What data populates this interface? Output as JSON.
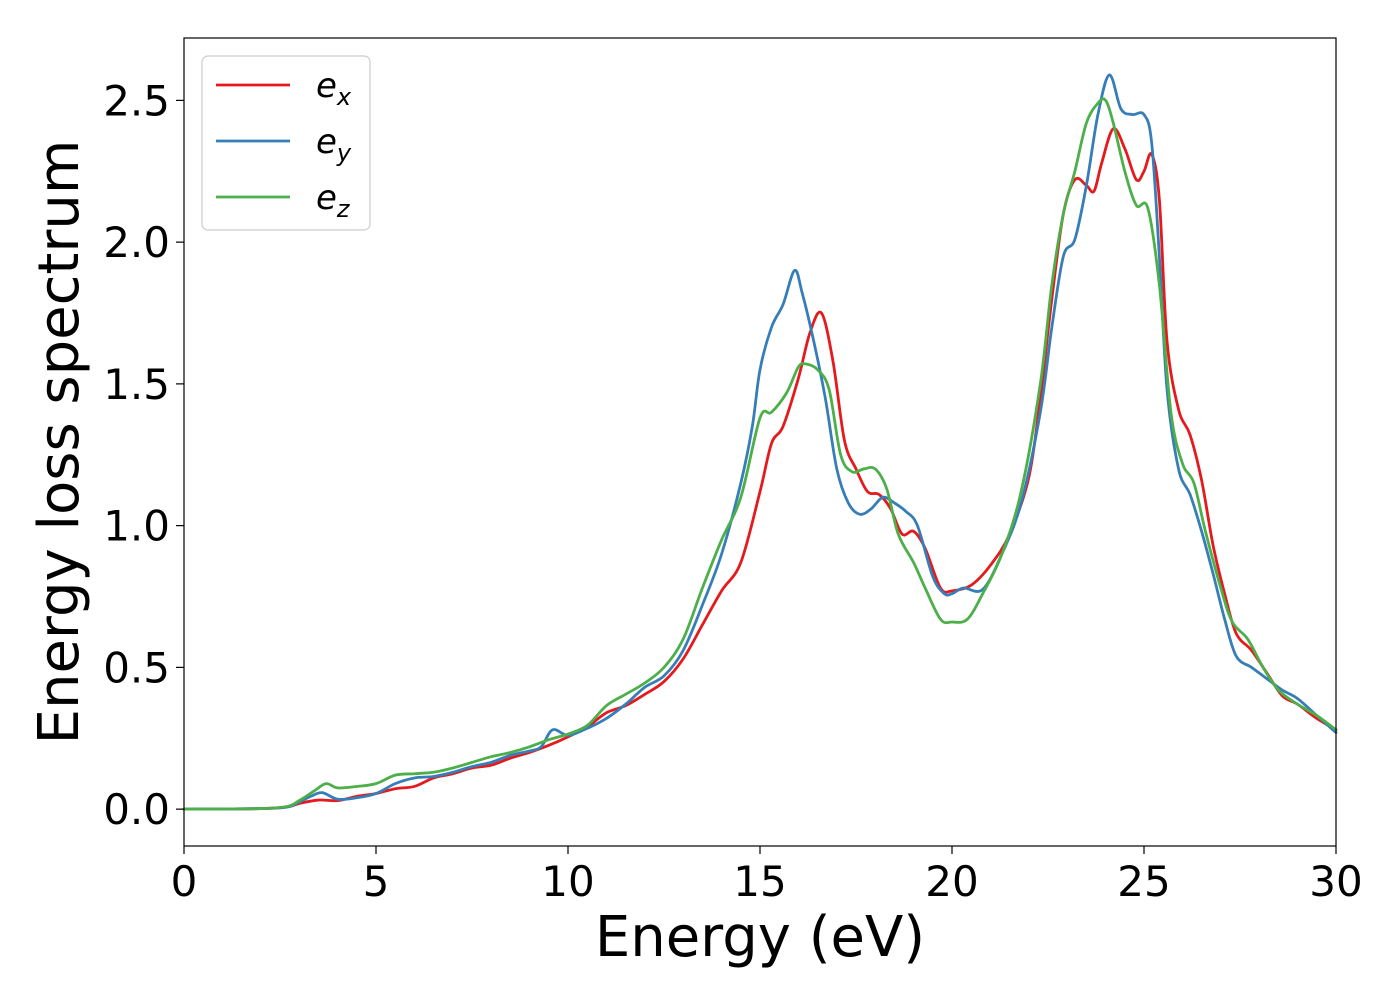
{
  "chart_data": {
    "type": "line",
    "title": "",
    "xlabel": "Energy (eV)",
    "ylabel": "Energy loss spectrum",
    "xlim": [
      0,
      30
    ],
    "ylim": [
      -0.13,
      2.72
    ],
    "xticks": [
      0,
      5,
      10,
      15,
      20,
      25,
      30
    ],
    "xtick_labels": [
      "0",
      "5",
      "10",
      "15",
      "20",
      "25",
      "30"
    ],
    "yticks": [
      0.0,
      0.5,
      1.0,
      1.5,
      2.0,
      2.5
    ],
    "ytick_labels": [
      "0.0",
      "0.5",
      "1.0",
      "1.5",
      "2.0",
      "2.5"
    ],
    "grid": false,
    "legend_position": "top-left",
    "series": [
      {
        "name": "e_x",
        "label_base": "e",
        "label_sub": "x",
        "color": "#e41a1c",
        "points": [
          [
            0,
            0
          ],
          [
            2,
            0.002
          ],
          [
            2.7,
            0.008
          ],
          [
            3,
            0.02
          ],
          [
            3.5,
            0.032
          ],
          [
            4,
            0.03
          ],
          [
            4.5,
            0.045
          ],
          [
            5,
            0.055
          ],
          [
            5.5,
            0.072
          ],
          [
            6,
            0.08
          ],
          [
            6.5,
            0.11
          ],
          [
            7,
            0.125
          ],
          [
            7.5,
            0.145
          ],
          [
            8,
            0.155
          ],
          [
            8.5,
            0.18
          ],
          [
            9,
            0.2
          ],
          [
            9.5,
            0.225
          ],
          [
            10,
            0.255
          ],
          [
            10.5,
            0.29
          ],
          [
            11,
            0.34
          ],
          [
            11.5,
            0.365
          ],
          [
            12,
            0.405
          ],
          [
            12.5,
            0.45
          ],
          [
            13,
            0.53
          ],
          [
            13.5,
            0.65
          ],
          [
            14,
            0.77
          ],
          [
            14.5,
            0.87
          ],
          [
            15,
            1.12
          ],
          [
            15.3,
            1.29
          ],
          [
            15.6,
            1.35
          ],
          [
            16,
            1.52
          ],
          [
            16.3,
            1.68
          ],
          [
            16.6,
            1.75
          ],
          [
            16.9,
            1.58
          ],
          [
            17.2,
            1.3
          ],
          [
            17.5,
            1.2
          ],
          [
            17.8,
            1.12
          ],
          [
            18.1,
            1.11
          ],
          [
            18.4,
            1.06
          ],
          [
            18.7,
            0.97
          ],
          [
            19,
            0.98
          ],
          [
            19.3,
            0.92
          ],
          [
            19.7,
            0.78
          ],
          [
            20,
            0.77
          ],
          [
            20.5,
            0.79
          ],
          [
            21,
            0.86
          ],
          [
            21.5,
            0.97
          ],
          [
            22,
            1.17
          ],
          [
            22.3,
            1.45
          ],
          [
            22.6,
            1.8
          ],
          [
            22.9,
            2.1
          ],
          [
            23.2,
            2.22
          ],
          [
            23.5,
            2.2
          ],
          [
            23.7,
            2.18
          ],
          [
            23.9,
            2.28
          ],
          [
            24.2,
            2.4
          ],
          [
            24.5,
            2.33
          ],
          [
            24.8,
            2.22
          ],
          [
            25,
            2.25
          ],
          [
            25.2,
            2.31
          ],
          [
            25.4,
            2.15
          ],
          [
            25.6,
            1.65
          ],
          [
            25.9,
            1.41
          ],
          [
            26.2,
            1.32
          ],
          [
            26.5,
            1.16
          ],
          [
            26.8,
            0.93
          ],
          [
            27.1,
            0.76
          ],
          [
            27.4,
            0.62
          ],
          [
            27.8,
            0.56
          ],
          [
            28.2,
            0.48
          ],
          [
            28.6,
            0.4
          ],
          [
            29,
            0.37
          ],
          [
            29.5,
            0.32
          ],
          [
            30,
            0.28
          ]
        ]
      },
      {
        "name": "e_y",
        "label_base": "e",
        "label_sub": "y",
        "color": "#377eb8",
        "points": [
          [
            0,
            0
          ],
          [
            2,
            0.002
          ],
          [
            2.7,
            0.008
          ],
          [
            3,
            0.025
          ],
          [
            3.3,
            0.045
          ],
          [
            3.6,
            0.058
          ],
          [
            4,
            0.035
          ],
          [
            4.5,
            0.04
          ],
          [
            5,
            0.055
          ],
          [
            5.5,
            0.09
          ],
          [
            6,
            0.11
          ],
          [
            6.5,
            0.115
          ],
          [
            7,
            0.13
          ],
          [
            7.5,
            0.15
          ],
          [
            8,
            0.165
          ],
          [
            8.5,
            0.19
          ],
          [
            9,
            0.205
          ],
          [
            9.3,
            0.22
          ],
          [
            9.6,
            0.28
          ],
          [
            10,
            0.26
          ],
          [
            10.5,
            0.285
          ],
          [
            11,
            0.32
          ],
          [
            11.5,
            0.37
          ],
          [
            12,
            0.43
          ],
          [
            12.5,
            0.47
          ],
          [
            13,
            0.56
          ],
          [
            13.5,
            0.72
          ],
          [
            14,
            0.9
          ],
          [
            14.5,
            1.15
          ],
          [
            14.8,
            1.35
          ],
          [
            15,
            1.55
          ],
          [
            15.3,
            1.7
          ],
          [
            15.6,
            1.78
          ],
          [
            15.9,
            1.9
          ],
          [
            16.1,
            1.82
          ],
          [
            16.4,
            1.65
          ],
          [
            16.7,
            1.45
          ],
          [
            17,
            1.2
          ],
          [
            17.3,
            1.08
          ],
          [
            17.6,
            1.04
          ],
          [
            17.9,
            1.06
          ],
          [
            18.2,
            1.1
          ],
          [
            18.5,
            1.08
          ],
          [
            18.8,
            1.05
          ],
          [
            19.1,
            1.0
          ],
          [
            19.5,
            0.82
          ],
          [
            19.8,
            0.76
          ],
          [
            20,
            0.76
          ],
          [
            20.3,
            0.78
          ],
          [
            20.8,
            0.775
          ],
          [
            21.3,
            0.9
          ],
          [
            21.8,
            1.08
          ],
          [
            22.3,
            1.4
          ],
          [
            22.6,
            1.7
          ],
          [
            22.9,
            1.95
          ],
          [
            23.2,
            2.01
          ],
          [
            23.5,
            2.2
          ],
          [
            23.8,
            2.45
          ],
          [
            24.1,
            2.59
          ],
          [
            24.4,
            2.47
          ],
          [
            24.7,
            2.45
          ],
          [
            25,
            2.45
          ],
          [
            25.2,
            2.35
          ],
          [
            25.4,
            1.95
          ],
          [
            25.6,
            1.48
          ],
          [
            25.9,
            1.2
          ],
          [
            26.2,
            1.11
          ],
          [
            26.5,
            0.98
          ],
          [
            26.8,
            0.83
          ],
          [
            27.1,
            0.67
          ],
          [
            27.4,
            0.54
          ],
          [
            27.8,
            0.5
          ],
          [
            28.2,
            0.46
          ],
          [
            28.6,
            0.42
          ],
          [
            29,
            0.39
          ],
          [
            29.5,
            0.33
          ],
          [
            30,
            0.27
          ]
        ]
      },
      {
        "name": "e_z",
        "label_base": "e",
        "label_sub": "z",
        "color": "#4daf4a",
        "points": [
          [
            0,
            0
          ],
          [
            2,
            0.002
          ],
          [
            2.7,
            0.01
          ],
          [
            3,
            0.03
          ],
          [
            3.4,
            0.065
          ],
          [
            3.7,
            0.09
          ],
          [
            4,
            0.075
          ],
          [
            4.5,
            0.08
          ],
          [
            5,
            0.09
          ],
          [
            5.5,
            0.12
          ],
          [
            6,
            0.125
          ],
          [
            6.5,
            0.13
          ],
          [
            7,
            0.145
          ],
          [
            7.5,
            0.165
          ],
          [
            8,
            0.185
          ],
          [
            8.5,
            0.2
          ],
          [
            9,
            0.22
          ],
          [
            9.5,
            0.245
          ],
          [
            10,
            0.265
          ],
          [
            10.5,
            0.295
          ],
          [
            11,
            0.365
          ],
          [
            11.5,
            0.405
          ],
          [
            12,
            0.445
          ],
          [
            12.5,
            0.5
          ],
          [
            13,
            0.6
          ],
          [
            13.5,
            0.78
          ],
          [
            14,
            0.95
          ],
          [
            14.5,
            1.1
          ],
          [
            15,
            1.38
          ],
          [
            15.3,
            1.4
          ],
          [
            15.7,
            1.47
          ],
          [
            16,
            1.56
          ],
          [
            16.2,
            1.57
          ],
          [
            16.5,
            1.55
          ],
          [
            16.8,
            1.48
          ],
          [
            17.1,
            1.25
          ],
          [
            17.4,
            1.19
          ],
          [
            17.7,
            1.2
          ],
          [
            18,
            1.2
          ],
          [
            18.3,
            1.13
          ],
          [
            18.6,
            0.97
          ],
          [
            19,
            0.87
          ],
          [
            19.3,
            0.78
          ],
          [
            19.7,
            0.67
          ],
          [
            20,
            0.66
          ],
          [
            20.4,
            0.67
          ],
          [
            20.8,
            0.76
          ],
          [
            21.3,
            0.9
          ],
          [
            21.8,
            1.12
          ],
          [
            22.3,
            1.5
          ],
          [
            22.6,
            1.85
          ],
          [
            22.9,
            2.1
          ],
          [
            23.2,
            2.25
          ],
          [
            23.5,
            2.42
          ],
          [
            23.8,
            2.49
          ],
          [
            24,
            2.5
          ],
          [
            24.2,
            2.42
          ],
          [
            24.5,
            2.25
          ],
          [
            24.8,
            2.13
          ],
          [
            25.1,
            2.12
          ],
          [
            25.4,
            1.85
          ],
          [
            25.7,
            1.4
          ],
          [
            26,
            1.22
          ],
          [
            26.3,
            1.15
          ],
          [
            26.6,
            0.98
          ],
          [
            27,
            0.78
          ],
          [
            27.3,
            0.66
          ],
          [
            27.7,
            0.6
          ],
          [
            28.1,
            0.5
          ],
          [
            28.5,
            0.42
          ],
          [
            29,
            0.37
          ],
          [
            29.5,
            0.33
          ],
          [
            30,
            0.28
          ]
        ]
      }
    ]
  }
}
